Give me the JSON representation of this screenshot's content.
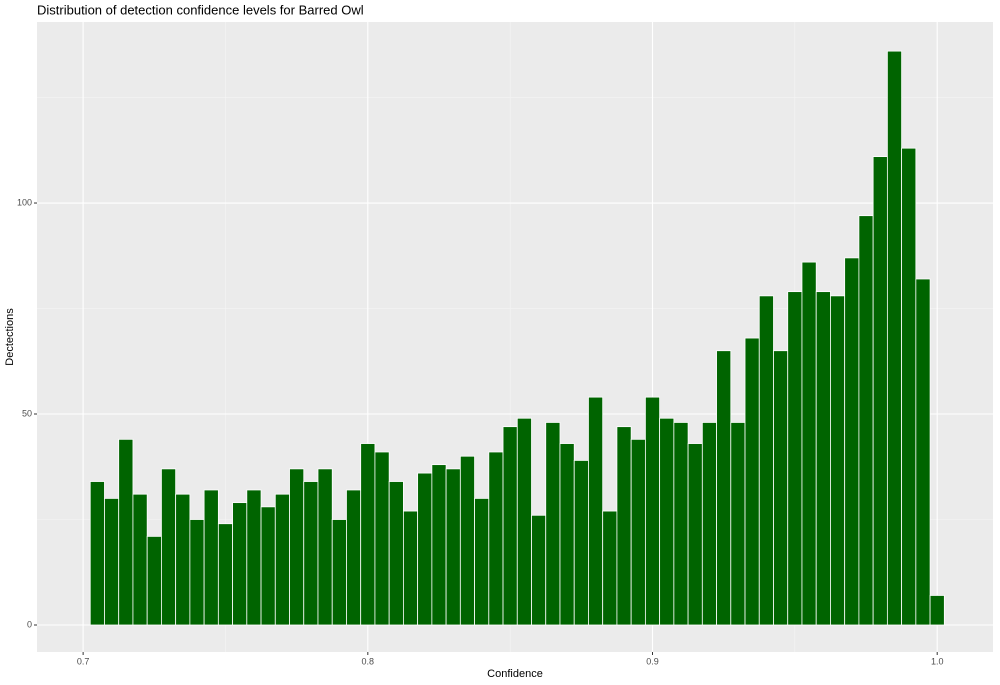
{
  "chart_data": {
    "type": "histogram",
    "title": "Distribution of detection confidence levels for Barred Owl",
    "x_label": "Confidence",
    "y_label": "Dectections",
    "bins": [
      0.7025,
      0.7075,
      0.7125,
      0.7175,
      0.7225,
      0.7275,
      0.7325,
      0.7375,
      0.7425,
      0.7475,
      0.7525,
      0.7575,
      0.7625,
      0.7675,
      0.7725,
      0.7775,
      0.7825,
      0.7875,
      0.7925,
      0.7975,
      0.8025,
      0.8075,
      0.8125,
      0.8175,
      0.8225,
      0.8275,
      0.8325,
      0.8375,
      0.8425,
      0.8475,
      0.8525,
      0.8575,
      0.8625,
      0.8675,
      0.8725,
      0.8775,
      0.8825,
      0.8875,
      0.8925,
      0.8975,
      0.9025,
      0.9075,
      0.9125,
      0.9175,
      0.9225,
      0.9275,
      0.9325,
      0.9375,
      0.9425,
      0.9475,
      0.9525,
      0.9575,
      0.9625,
      0.9675,
      0.9725,
      0.9775,
      0.9825,
      0.9875,
      0.9925,
      0.9975,
      1.0025
    ],
    "values": [
      34,
      30,
      44,
      31,
      21,
      37,
      31,
      25,
      32,
      24,
      29,
      32,
      28,
      31,
      37,
      34,
      37,
      25,
      32,
      43,
      41,
      34,
      27,
      36,
      38,
      37,
      40,
      30,
      41,
      47,
      49,
      26,
      48,
      43,
      39,
      54,
      27,
      47,
      44,
      54,
      49,
      48,
      43,
      48,
      65,
      48,
      68,
      78,
      65,
      79,
      86,
      79,
      78,
      87,
      97,
      111,
      136,
      113,
      82,
      7
    ],
    "color": "#006400",
    "xlim": [
      0.6838,
      1.0196
    ],
    "xticks": [
      0.7,
      0.8,
      0.9,
      {
        "value": 1,
        "label": "1.0"
      }
    ],
    "xminor": [
      0.75,
      0.85,
      0.95
    ],
    "ylim": [
      -6.4,
      142.9
    ],
    "yticks": [
      0,
      50,
      100
    ],
    "yminor": [
      25,
      75,
      125
    ],
    "grid": true
  }
}
